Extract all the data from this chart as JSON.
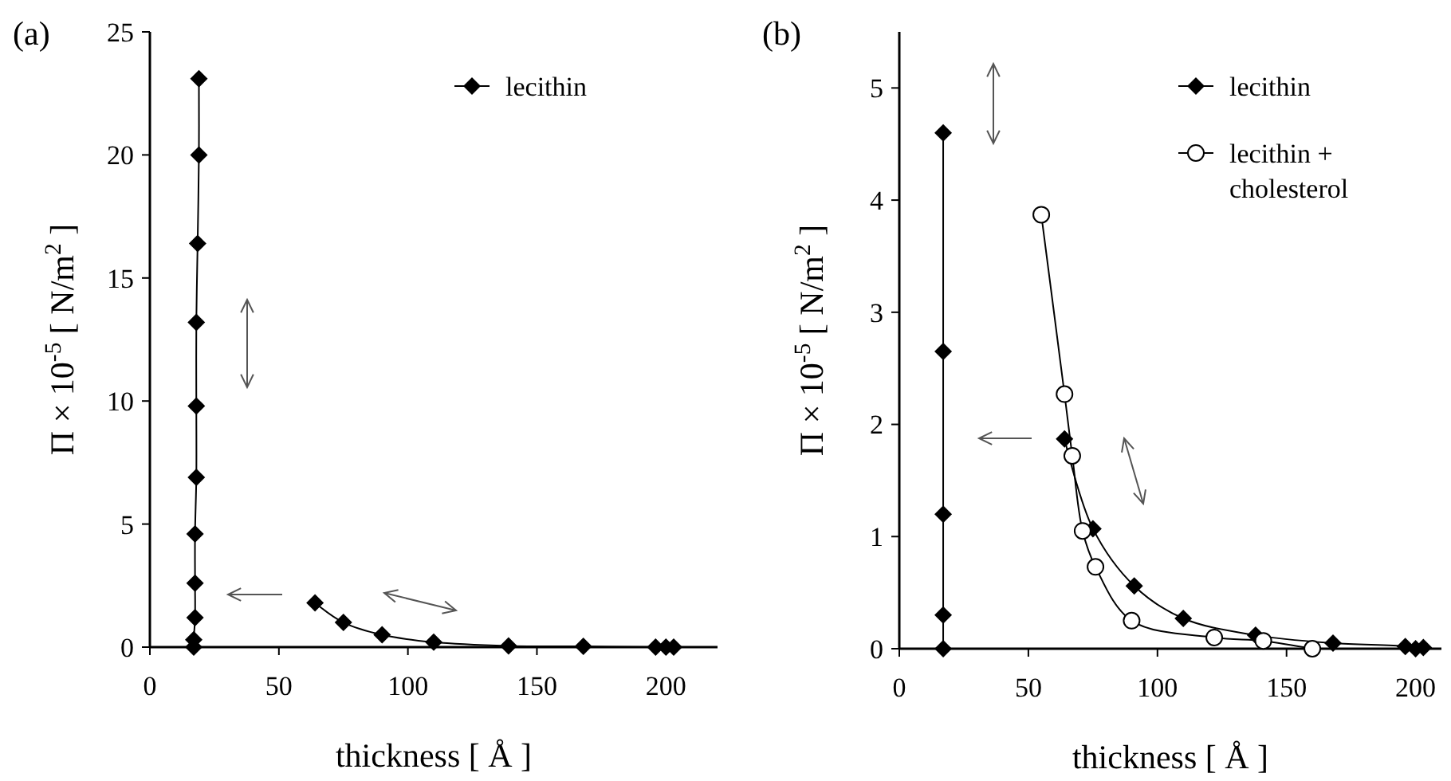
{
  "chart_data": [
    {
      "type": "line",
      "ylabel": "Π × 10$^{-5}$  [ N/m$^{2}$ ]",
      "xlabel": "thickness [ Å ]",
      "annotations": [
        "(a)"
      ],
      "xlim": [
        0,
        220
      ],
      "xticks": [
        0,
        50,
        100,
        150,
        200
      ],
      "ylim": [
        0,
        25
      ],
      "yticks": [
        0,
        5,
        10,
        15,
        20,
        25
      ],
      "grid": false,
      "legend": "top right",
      "series": [
        {
          "name": "lecithin",
          "color": "#000000",
          "marker": "diamond",
          "x": [
            17,
            17,
            17.5,
            17.5,
            17.5,
            18,
            18,
            18,
            18.5,
            19,
            19,
            40,
            64,
            75,
            90,
            110,
            139,
            168,
            196,
            200,
            203
          ],
          "values": [
            0,
            0.3,
            1.2,
            2.6,
            4.6,
            6.9,
            9.8,
            13.2,
            16.4,
            20.0,
            23.1,
            null,
            1.8,
            1.0,
            0.5,
            0.2,
            0.05,
            0.03,
            0,
            0,
            0
          ]
        }
      ]
    },
    {
      "type": "line",
      "ylabel": "Π × 10$^{-5}$  [ N/m$^{2}$ ]",
      "xlabel": "thickness [ Å ]",
      "annotations": [
        "(b)"
      ],
      "xlim": [
        0,
        210
      ],
      "xticks": [
        0,
        50,
        100,
        150,
        200
      ],
      "ylim": [
        0,
        5.5
      ],
      "yticks": [
        0,
        1,
        2,
        3,
        4,
        5
      ],
      "grid": false,
      "legend": "top right",
      "series": [
        {
          "name": "lecithin",
          "color": "#000000",
          "marker": "diamond",
          "x": [
            17,
            17,
            17,
            17,
            17,
            40,
            64,
            75,
            91,
            110,
            138,
            168,
            196,
            200,
            203
          ],
          "values": [
            0,
            0.3,
            1.2,
            2.65,
            4.6,
            null,
            1.87,
            1.07,
            0.56,
            0.27,
            0.12,
            0.05,
            0.02,
            0,
            0.01
          ]
        },
        {
          "name": "lecithin + cholesterol",
          "color": "#000000",
          "marker": "circle",
          "x": [
            55,
            64,
            67,
            71,
            76,
            90,
            122,
            141,
            160
          ],
          "values": [
            3.87,
            2.27,
            1.72,
            1.05,
            0.73,
            0.25,
            0.1,
            0.07,
            0
          ]
        }
      ]
    }
  ]
}
